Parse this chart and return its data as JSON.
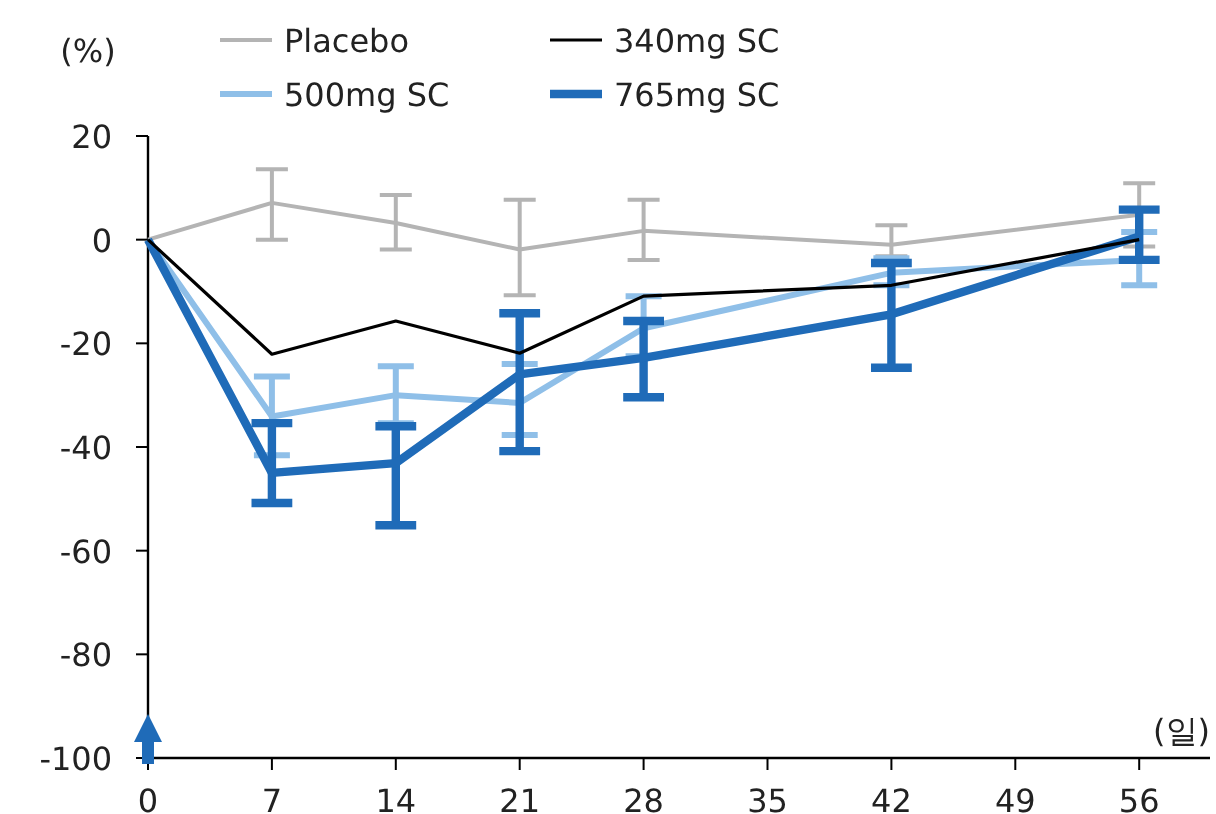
{
  "chart_data": {
    "type": "line",
    "ylabel": "(%)",
    "xlabel": "(일)",
    "legend": "top",
    "x": [
      0,
      7,
      14,
      21,
      28,
      42,
      56
    ],
    "xlim": [
      0,
      60
    ],
    "xticks": [
      0,
      7,
      14,
      21,
      28,
      35,
      42,
      49,
      56
    ],
    "ylim": [
      -100,
      20
    ],
    "yticks": [
      -100,
      -80,
      -60,
      -40,
      -20,
      0,
      20
    ],
    "series": [
      {
        "name": "Placebo",
        "color": "#b4b4b4",
        "values": [
          0,
          7.1,
          3.2,
          -1.9,
          1.7,
          -1.0,
          4.8
        ],
        "errors": [
          null,
          [
            0,
            13.6
          ],
          [
            -1.9,
            8.6
          ],
          [
            -10.7,
            7.7
          ],
          [
            -3.9,
            7.7
          ],
          [
            -3.2,
            2.8
          ],
          [
            -1.3,
            10.9
          ]
        ]
      },
      {
        "name": "340mg SC",
        "color": "#000000",
        "values": [
          0,
          -22.1,
          -15.7,
          -21.9,
          -10.9,
          -8.8,
          0
        ]
      },
      {
        "name": "500mg SC",
        "color": "#8fbfe8",
        "values": [
          0,
          -34.1,
          -30,
          -31.5,
          -17.1,
          -6.4,
          -3.9
        ],
        "errors": [
          null,
          [
            -41.6,
            -26.4
          ],
          [
            -35.4,
            -24.4
          ],
          [
            -37.7,
            -24
          ],
          [
            -22.5,
            -10.9
          ],
          [
            -8.8,
            -3.6
          ],
          [
            -8.8,
            1.5
          ]
        ]
      },
      {
        "name": "765mg SC",
        "color": "#1f6bb8",
        "values": [
          0,
          -45,
          -43.1,
          -26,
          -22.8,
          -14.4,
          0.6
        ],
        "errors": [
          null,
          [
            -50.8,
            -35.4
          ],
          [
            -55.1,
            -36
          ],
          [
            -40.8,
            -14.2
          ],
          [
            -30.4,
            -15.7
          ],
          [
            -24.7,
            -4.5
          ],
          [
            -3.9,
            5.8
          ]
        ]
      }
    ]
  }
}
